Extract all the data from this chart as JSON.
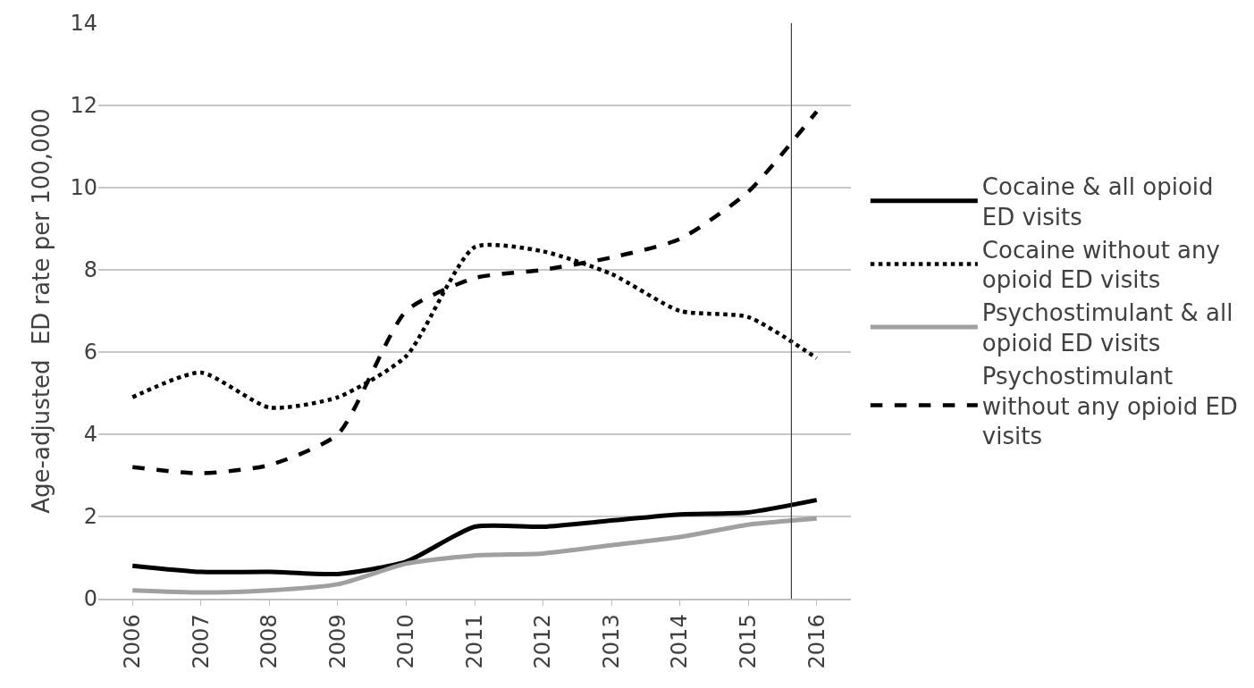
{
  "chart_data": {
    "type": "line",
    "ylabel": "Age-adjusted  ED rate per 100,000",
    "x": [
      2006,
      2007,
      2008,
      2009,
      2010,
      2011,
      2012,
      2013,
      2014,
      2015,
      2016
    ],
    "xlim": [
      2005.5,
      2016.5
    ],
    "xticks": [
      2006,
      2007,
      2008,
      2009,
      2010,
      2011,
      2012,
      2013,
      2014,
      2015,
      2016
    ],
    "ylim": [
      0,
      14
    ],
    "yticks": [
      0,
      2,
      4,
      6,
      8,
      10,
      12,
      14
    ],
    "grid": "y",
    "legend": "right",
    "series": [
      {
        "name": "Cocaine & all opioid ED visits",
        "color": "#000000",
        "line_style": "solid",
        "values": [
          0.8,
          0.65,
          0.65,
          0.6,
          0.9,
          1.75,
          1.75,
          1.9,
          2.05,
          2.1,
          2.4
        ]
      },
      {
        "name": "Cocaine without any opioid ED visits",
        "color": "#000000",
        "line_style": "dotted",
        "values": [
          4.9,
          5.5,
          4.65,
          4.9,
          5.9,
          8.55,
          8.45,
          7.9,
          7.0,
          6.85,
          5.85
        ]
      },
      {
        "name": "Psychostimulant & all opioid ED visits",
        "color": "#a0a0a0",
        "line_style": "solid",
        "values": [
          0.2,
          0.15,
          0.2,
          0.35,
          0.85,
          1.05,
          1.1,
          1.3,
          1.5,
          1.8,
          1.95
        ]
      },
      {
        "name": "Psychostimulant without any opioid ED visits",
        "color": "#000000",
        "line_style": "dashed",
        "values": [
          3.2,
          3.05,
          3.25,
          4.0,
          7.0,
          7.8,
          8.0,
          8.3,
          8.75,
          9.9,
          11.85
        ]
      }
    ],
    "ref_lines": [
      {
        "axis": "x",
        "value": 2015.63,
        "color": "#404040",
        "line_style": "solid"
      }
    ]
  }
}
